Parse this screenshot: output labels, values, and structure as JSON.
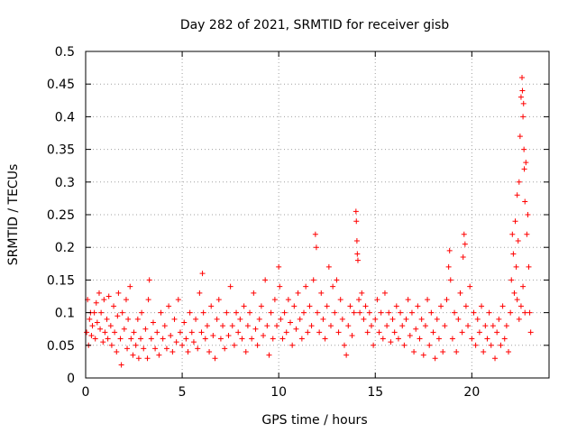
{
  "chart_data": {
    "type": "scatter",
    "title": "Day 282 of 2021, SRMTID for receiver gisb",
    "xlabel": "GPS time / hours",
    "ylabel": "SRMTID / TECUs",
    "xlim": [
      0,
      24
    ],
    "ylim": [
      0,
      0.5
    ],
    "xticks": [
      0,
      5,
      10,
      15,
      20
    ],
    "xtick_labels": [
      "0",
      "5",
      "10",
      "15",
      "20"
    ],
    "yticks": [
      0,
      0.05,
      0.1,
      0.15,
      0.2,
      0.25,
      0.3,
      0.35,
      0.4,
      0.45,
      0.5
    ],
    "ytick_labels": [
      "0",
      "0.05",
      "0.1",
      "0.15",
      "0.2",
      "0.25",
      "0.3",
      "0.35",
      "0.4",
      "0.45",
      "0.5"
    ],
    "grid": true,
    "marker": "plus",
    "series": [
      {
        "name": "SRMTID",
        "color": "#ff0000",
        "points": [
          [
            0.05,
            0.07
          ],
          [
            0.1,
            0.12
          ],
          [
            0.15,
            0.05
          ],
          [
            0.2,
            0.09
          ],
          [
            0.25,
            0.1
          ],
          [
            0.3,
            0.065
          ],
          [
            0.35,
            0.08
          ],
          [
            0.45,
            0.1
          ],
          [
            0.5,
            0.06
          ],
          [
            0.55,
            0.115
          ],
          [
            0.6,
            0.085
          ],
          [
            0.7,
            0.13
          ],
          [
            0.75,
            0.075
          ],
          [
            0.8,
            0.1
          ],
          [
            0.9,
            0.055
          ],
          [
            0.95,
            0.12
          ],
          [
            1.0,
            0.07
          ],
          [
            1.1,
            0.09
          ],
          [
            1.15,
            0.06
          ],
          [
            1.2,
            0.125
          ],
          [
            1.3,
            0.08
          ],
          [
            1.35,
            0.05
          ],
          [
            1.45,
            0.11
          ],
          [
            1.5,
            0.07
          ],
          [
            1.6,
            0.04
          ],
          [
            1.65,
            0.095
          ],
          [
            1.7,
            0.13
          ],
          [
            1.8,
            0.06
          ],
          [
            1.85,
            0.02
          ],
          [
            1.9,
            0.1
          ],
          [
            2.0,
            0.075
          ],
          [
            2.1,
            0.12
          ],
          [
            2.15,
            0.045
          ],
          [
            2.2,
            0.09
          ],
          [
            2.3,
            0.14
          ],
          [
            2.35,
            0.06
          ],
          [
            2.45,
            0.035
          ],
          [
            2.5,
            0.07
          ],
          [
            2.6,
            0.05
          ],
          [
            2.7,
            0.09
          ],
          [
            2.75,
            0.03
          ],
          [
            2.85,
            0.06
          ],
          [
            2.9,
            0.1
          ],
          [
            3.0,
            0.045
          ],
          [
            3.1,
            0.075
          ],
          [
            3.2,
            0.03
          ],
          [
            3.25,
            0.12
          ],
          [
            3.3,
            0.15
          ],
          [
            3.4,
            0.06
          ],
          [
            3.5,
            0.085
          ],
          [
            3.6,
            0.045
          ],
          [
            3.7,
            0.07
          ],
          [
            3.8,
            0.035
          ],
          [
            3.9,
            0.1
          ],
          [
            4.0,
            0.06
          ],
          [
            4.1,
            0.08
          ],
          [
            4.2,
            0.045
          ],
          [
            4.3,
            0.11
          ],
          [
            4.4,
            0.065
          ],
          [
            4.5,
            0.04
          ],
          [
            4.6,
            0.09
          ],
          [
            4.7,
            0.055
          ],
          [
            4.8,
            0.12
          ],
          [
            4.9,
            0.07
          ],
          [
            5.0,
            0.05
          ],
          [
            5.1,
            0.085
          ],
          [
            5.2,
            0.06
          ],
          [
            5.3,
            0.04
          ],
          [
            5.4,
            0.1
          ],
          [
            5.5,
            0.07
          ],
          [
            5.6,
            0.055
          ],
          [
            5.7,
            0.09
          ],
          [
            5.8,
            0.045
          ],
          [
            5.9,
            0.13
          ],
          [
            6.0,
            0.07
          ],
          [
            6.05,
            0.16
          ],
          [
            6.1,
            0.1
          ],
          [
            6.2,
            0.06
          ],
          [
            6.3,
            0.08
          ],
          [
            6.4,
            0.04
          ],
          [
            6.5,
            0.11
          ],
          [
            6.6,
            0.065
          ],
          [
            6.7,
            0.03
          ],
          [
            6.8,
            0.09
          ],
          [
            6.9,
            0.12
          ],
          [
            7.0,
            0.06
          ],
          [
            7.1,
            0.08
          ],
          [
            7.2,
            0.045
          ],
          [
            7.3,
            0.1
          ],
          [
            7.4,
            0.065
          ],
          [
            7.5,
            0.14
          ],
          [
            7.6,
            0.08
          ],
          [
            7.7,
            0.05
          ],
          [
            7.8,
            0.1
          ],
          [
            7.9,
            0.07
          ],
          [
            8.0,
            0.09
          ],
          [
            8.1,
            0.06
          ],
          [
            8.2,
            0.11
          ],
          [
            8.3,
            0.04
          ],
          [
            8.4,
            0.08
          ],
          [
            8.5,
            0.1
          ],
          [
            8.6,
            0.06
          ],
          [
            8.7,
            0.13
          ],
          [
            8.8,
            0.075
          ],
          [
            8.9,
            0.05
          ],
          [
            9.0,
            0.09
          ],
          [
            9.1,
            0.11
          ],
          [
            9.2,
            0.065
          ],
          [
            9.3,
            0.15
          ],
          [
            9.4,
            0.08
          ],
          [
            9.5,
            0.035
          ],
          [
            9.6,
            0.1
          ],
          [
            9.7,
            0.06
          ],
          [
            9.8,
            0.12
          ],
          [
            9.9,
            0.08
          ],
          [
            10.0,
            0.17
          ],
          [
            10.05,
            0.14
          ],
          [
            10.1,
            0.09
          ],
          [
            10.2,
            0.06
          ],
          [
            10.3,
            0.1
          ],
          [
            10.4,
            0.07
          ],
          [
            10.5,
            0.12
          ],
          [
            10.6,
            0.085
          ],
          [
            10.7,
            0.05
          ],
          [
            10.8,
            0.11
          ],
          [
            10.9,
            0.075
          ],
          [
            11.0,
            0.13
          ],
          [
            11.1,
            0.09
          ],
          [
            11.2,
            0.06
          ],
          [
            11.3,
            0.1
          ],
          [
            11.4,
            0.14
          ],
          [
            11.5,
            0.07
          ],
          [
            11.6,
            0.11
          ],
          [
            11.7,
            0.08
          ],
          [
            11.8,
            0.15
          ],
          [
            11.9,
            0.22
          ],
          [
            11.95,
            0.2
          ],
          [
            12.0,
            0.1
          ],
          [
            12.1,
            0.07
          ],
          [
            12.2,
            0.13
          ],
          [
            12.3,
            0.09
          ],
          [
            12.4,
            0.06
          ],
          [
            12.5,
            0.11
          ],
          [
            12.6,
            0.17
          ],
          [
            12.7,
            0.08
          ],
          [
            12.8,
            0.14
          ],
          [
            12.9,
            0.1
          ],
          [
            13.0,
            0.15
          ],
          [
            13.1,
            0.07
          ],
          [
            13.2,
            0.12
          ],
          [
            13.3,
            0.09
          ],
          [
            13.4,
            0.05
          ],
          [
            13.5,
            0.035
          ],
          [
            13.6,
            0.08
          ],
          [
            13.7,
            0.11
          ],
          [
            13.8,
            0.065
          ],
          [
            13.9,
            0.1
          ],
          [
            14.0,
            0.255
          ],
          [
            14.02,
            0.24
          ],
          [
            14.05,
            0.21
          ],
          [
            14.07,
            0.19
          ],
          [
            14.1,
            0.18
          ],
          [
            14.15,
            0.12
          ],
          [
            14.2,
            0.1
          ],
          [
            14.3,
            0.13
          ],
          [
            14.4,
            0.09
          ],
          [
            14.5,
            0.11
          ],
          [
            14.6,
            0.07
          ],
          [
            14.7,
            0.1
          ],
          [
            14.8,
            0.08
          ],
          [
            14.9,
            0.05
          ],
          [
            15.0,
            0.09
          ],
          [
            15.1,
            0.12
          ],
          [
            15.2,
            0.07
          ],
          [
            15.3,
            0.1
          ],
          [
            15.4,
            0.06
          ],
          [
            15.5,
            0.13
          ],
          [
            15.6,
            0.08
          ],
          [
            15.7,
            0.1
          ],
          [
            15.8,
            0.055
          ],
          [
            15.9,
            0.09
          ],
          [
            16.0,
            0.07
          ],
          [
            16.1,
            0.11
          ],
          [
            16.2,
            0.06
          ],
          [
            16.3,
            0.1
          ],
          [
            16.4,
            0.08
          ],
          [
            16.5,
            0.05
          ],
          [
            16.6,
            0.09
          ],
          [
            16.7,
            0.12
          ],
          [
            16.8,
            0.065
          ],
          [
            16.9,
            0.1
          ],
          [
            17.0,
            0.04
          ],
          [
            17.1,
            0.075
          ],
          [
            17.2,
            0.11
          ],
          [
            17.3,
            0.06
          ],
          [
            17.4,
            0.09
          ],
          [
            17.5,
            0.035
          ],
          [
            17.6,
            0.08
          ],
          [
            17.7,
            0.12
          ],
          [
            17.8,
            0.05
          ],
          [
            17.9,
            0.1
          ],
          [
            18.0,
            0.07
          ],
          [
            18.1,
            0.03
          ],
          [
            18.2,
            0.09
          ],
          [
            18.3,
            0.06
          ],
          [
            18.4,
            0.11
          ],
          [
            18.5,
            0.04
          ],
          [
            18.6,
            0.08
          ],
          [
            18.7,
            0.12
          ],
          [
            18.8,
            0.17
          ],
          [
            18.85,
            0.195
          ],
          [
            18.9,
            0.15
          ],
          [
            19.0,
            0.06
          ],
          [
            19.1,
            0.1
          ],
          [
            19.2,
            0.04
          ],
          [
            19.3,
            0.09
          ],
          [
            19.4,
            0.13
          ],
          [
            19.5,
            0.07
          ],
          [
            19.55,
            0.185
          ],
          [
            19.6,
            0.22
          ],
          [
            19.65,
            0.205
          ],
          [
            19.7,
            0.11
          ],
          [
            19.8,
            0.08
          ],
          [
            19.9,
            0.14
          ],
          [
            20.0,
            0.06
          ],
          [
            20.1,
            0.1
          ],
          [
            20.2,
            0.05
          ],
          [
            20.3,
            0.09
          ],
          [
            20.4,
            0.07
          ],
          [
            20.5,
            0.11
          ],
          [
            20.6,
            0.04
          ],
          [
            20.7,
            0.08
          ],
          [
            20.8,
            0.06
          ],
          [
            20.9,
            0.1
          ],
          [
            21.0,
            0.05
          ],
          [
            21.1,
            0.08
          ],
          [
            21.2,
            0.03
          ],
          [
            21.3,
            0.07
          ],
          [
            21.4,
            0.09
          ],
          [
            21.5,
            0.05
          ],
          [
            21.6,
            0.11
          ],
          [
            21.7,
            0.06
          ],
          [
            21.8,
            0.08
          ],
          [
            21.9,
            0.04
          ],
          [
            22.0,
            0.1
          ],
          [
            22.05,
            0.15
          ],
          [
            22.1,
            0.22
          ],
          [
            22.15,
            0.19
          ],
          [
            22.2,
            0.13
          ],
          [
            22.25,
            0.24
          ],
          [
            22.3,
            0.17
          ],
          [
            22.35,
            0.28
          ],
          [
            22.4,
            0.21
          ],
          [
            22.45,
            0.3
          ],
          [
            22.5,
            0.37
          ],
          [
            22.55,
            0.43
          ],
          [
            22.6,
            0.46
          ],
          [
            22.62,
            0.44
          ],
          [
            22.65,
            0.4
          ],
          [
            22.68,
            0.42
          ],
          [
            22.7,
            0.35
          ],
          [
            22.72,
            0.32
          ],
          [
            22.75,
            0.27
          ],
          [
            22.8,
            0.33
          ],
          [
            22.85,
            0.22
          ],
          [
            22.9,
            0.25
          ],
          [
            22.95,
            0.17
          ],
          [
            23.0,
            0.1
          ],
          [
            23.05,
            0.07
          ],
          [
            22.35,
            0.12
          ],
          [
            22.45,
            0.09
          ],
          [
            22.55,
            0.11
          ],
          [
            22.65,
            0.14
          ],
          [
            22.75,
            0.1
          ]
        ]
      }
    ]
  }
}
